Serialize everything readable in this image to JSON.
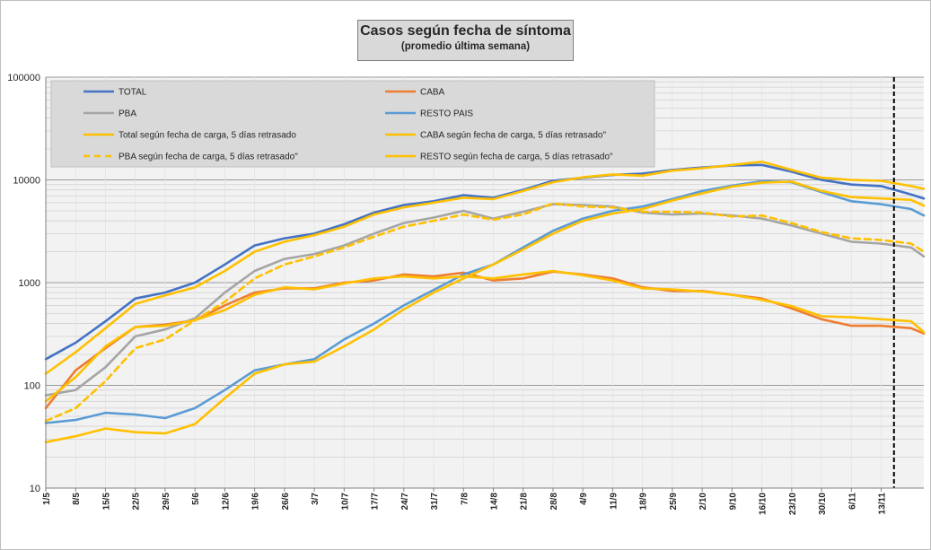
{
  "chart_data": {
    "type": "line",
    "title": "Casos según fecha de síntoma",
    "subtitle": "(promedio última semana)",
    "y_scale": "log",
    "ylim": [
      10,
      100000
    ],
    "y_ticks": [
      "10",
      "100",
      "1000",
      "10000",
      "100000"
    ],
    "x_ticks": [
      "1/5",
      "8/5",
      "15/5",
      "22/5",
      "29/5",
      "5/6",
      "12/6",
      "19/6",
      "26/6",
      "3/7",
      "10/7",
      "17/7",
      "24/7",
      "31/7",
      "7/8",
      "14/8",
      "21/8",
      "28/8",
      "4/9",
      "11/9",
      "18/9",
      "25/9",
      "2/10",
      "9/10",
      "16/10",
      "23/10",
      "30/10",
      "6/11",
      "13/11"
    ],
    "x_range_days": [
      0,
      206
    ],
    "vline_day": 199,
    "grid": true,
    "legend_position": "top-left inside plot",
    "x_unit": "days from 1/5",
    "series": [
      {
        "name": "TOTAL",
        "color": "#4472c4",
        "dash": false,
        "points": [
          [
            0,
            180
          ],
          [
            7,
            260
          ],
          [
            14,
            420
          ],
          [
            21,
            700
          ],
          [
            28,
            800
          ],
          [
            35,
            1000
          ],
          [
            42,
            1500
          ],
          [
            49,
            2300
          ],
          [
            56,
            2700
          ],
          [
            63,
            3000
          ],
          [
            70,
            3700
          ],
          [
            77,
            4800
          ],
          [
            84,
            5700
          ],
          [
            91,
            6200
          ],
          [
            98,
            7100
          ],
          [
            105,
            6700
          ],
          [
            112,
            8000
          ],
          [
            119,
            9800
          ],
          [
            126,
            10500
          ],
          [
            133,
            11200
          ],
          [
            140,
            11500
          ],
          [
            147,
            12500
          ],
          [
            154,
            13200
          ],
          [
            161,
            13800
          ],
          [
            168,
            14000
          ],
          [
            175,
            12000
          ],
          [
            182,
            10000
          ],
          [
            189,
            9000
          ],
          [
            196,
            8700
          ],
          [
            203,
            7200
          ],
          [
            206,
            6600
          ]
        ]
      },
      {
        "name": "CABA",
        "color": "#ed7d31",
        "dash": false,
        "points": [
          [
            0,
            60
          ],
          [
            7,
            140
          ],
          [
            14,
            230
          ],
          [
            21,
            370
          ],
          [
            28,
            390
          ],
          [
            35,
            430
          ],
          [
            42,
            600
          ],
          [
            49,
            800
          ],
          [
            56,
            880
          ],
          [
            63,
            880
          ],
          [
            70,
            1000
          ],
          [
            77,
            1050
          ],
          [
            84,
            1200
          ],
          [
            91,
            1150
          ],
          [
            98,
            1250
          ],
          [
            105,
            1050
          ],
          [
            112,
            1100
          ],
          [
            119,
            1280
          ],
          [
            126,
            1200
          ],
          [
            133,
            1100
          ],
          [
            140,
            900
          ],
          [
            147,
            830
          ],
          [
            154,
            830
          ],
          [
            161,
            760
          ],
          [
            168,
            700
          ],
          [
            175,
            560
          ],
          [
            182,
            440
          ],
          [
            189,
            380
          ],
          [
            196,
            380
          ],
          [
            203,
            360
          ],
          [
            206,
            320
          ]
        ]
      },
      {
        "name": "PBA",
        "color": "#a5a5a5",
        "dash": false,
        "points": [
          [
            0,
            80
          ],
          [
            7,
            90
          ],
          [
            14,
            150
          ],
          [
            21,
            300
          ],
          [
            28,
            350
          ],
          [
            35,
            450
          ],
          [
            42,
            800
          ],
          [
            49,
            1300
          ],
          [
            56,
            1700
          ],
          [
            63,
            1900
          ],
          [
            70,
            2300
          ],
          [
            77,
            3000
          ],
          [
            84,
            3800
          ],
          [
            91,
            4300
          ],
          [
            98,
            5000
          ],
          [
            105,
            4200
          ],
          [
            112,
            4900
          ],
          [
            119,
            5800
          ],
          [
            126,
            5700
          ],
          [
            133,
            5500
          ],
          [
            140,
            4800
          ],
          [
            147,
            4600
          ],
          [
            154,
            4700
          ],
          [
            161,
            4500
          ],
          [
            168,
            4200
          ],
          [
            175,
            3600
          ],
          [
            182,
            3000
          ],
          [
            189,
            2500
          ],
          [
            196,
            2400
          ],
          [
            203,
            2200
          ],
          [
            206,
            1800
          ]
        ]
      },
      {
        "name": "RESTO PAIS",
        "color": "#5b9bd5",
        "dash": false,
        "points": [
          [
            0,
            43
          ],
          [
            7,
            46
          ],
          [
            14,
            54
          ],
          [
            21,
            52
          ],
          [
            28,
            48
          ],
          [
            35,
            60
          ],
          [
            42,
            90
          ],
          [
            49,
            140
          ],
          [
            56,
            160
          ],
          [
            63,
            180
          ],
          [
            70,
            280
          ],
          [
            77,
            400
          ],
          [
            84,
            600
          ],
          [
            91,
            850
          ],
          [
            98,
            1200
          ],
          [
            105,
            1500
          ],
          [
            112,
            2200
          ],
          [
            119,
            3200
          ],
          [
            126,
            4200
          ],
          [
            133,
            5000
          ],
          [
            140,
            5500
          ],
          [
            147,
            6500
          ],
          [
            154,
            7800
          ],
          [
            161,
            8800
          ],
          [
            168,
            9700
          ],
          [
            175,
            9500
          ],
          [
            182,
            7600
          ],
          [
            189,
            6200
          ],
          [
            196,
            5800
          ],
          [
            203,
            5200
          ],
          [
            206,
            4500
          ]
        ]
      },
      {
        "name": "Total según fecha de carga, 5 días retrasado",
        "color": "#ffc000",
        "dash": false,
        "points": [
          [
            0,
            130
          ],
          [
            7,
            210
          ],
          [
            14,
            360
          ],
          [
            21,
            620
          ],
          [
            28,
            750
          ],
          [
            35,
            900
          ],
          [
            42,
            1300
          ],
          [
            49,
            2000
          ],
          [
            56,
            2500
          ],
          [
            63,
            2900
          ],
          [
            70,
            3500
          ],
          [
            77,
            4600
          ],
          [
            84,
            5400
          ],
          [
            91,
            6000
          ],
          [
            98,
            6700
          ],
          [
            105,
            6500
          ],
          [
            112,
            7800
          ],
          [
            119,
            9500
          ],
          [
            126,
            10600
          ],
          [
            133,
            11300
          ],
          [
            140,
            11000
          ],
          [
            147,
            12300
          ],
          [
            154,
            13000
          ],
          [
            161,
            14000
          ],
          [
            168,
            15000
          ],
          [
            175,
            12500
          ],
          [
            182,
            10500
          ],
          [
            189,
            10000
          ],
          [
            196,
            9800
          ],
          [
            203,
            8700
          ],
          [
            206,
            8200
          ]
        ]
      },
      {
        "name": "CABA según fecha de carga, 5 días retrasado\"",
        "color": "#ffc000",
        "dash": false,
        "points": [
          [
            0,
            28
          ],
          [
            7,
            32
          ],
          [
            14,
            38
          ],
          [
            21,
            35
          ],
          [
            28,
            34
          ],
          [
            35,
            42
          ],
          [
            42,
            75
          ],
          [
            49,
            130
          ],
          [
            56,
            160
          ],
          [
            63,
            170
          ],
          [
            70,
            240
          ],
          [
            77,
            350
          ],
          [
            84,
            550
          ],
          [
            91,
            800
          ],
          [
            98,
            1100
          ],
          [
            105,
            1500
          ],
          [
            112,
            2100
          ],
          [
            119,
            3000
          ],
          [
            126,
            4000
          ],
          [
            133,
            4700
          ],
          [
            140,
            5200
          ],
          [
            147,
            6300
          ],
          [
            154,
            7400
          ],
          [
            161,
            8600
          ],
          [
            168,
            9400
          ],
          [
            175,
            9600
          ],
          [
            182,
            7800
          ],
          [
            189,
            6800
          ],
          [
            196,
            6600
          ],
          [
            203,
            6400
          ],
          [
            206,
            5600
          ]
        ]
      },
      {
        "name": "PBA según fecha de carga, 5 días retrasado\"",
        "color": "#ffc000",
        "dash": true,
        "points": [
          [
            0,
            45
          ],
          [
            7,
            60
          ],
          [
            14,
            110
          ],
          [
            21,
            230
          ],
          [
            28,
            280
          ],
          [
            35,
            430
          ],
          [
            42,
            650
          ],
          [
            49,
            1100
          ],
          [
            56,
            1500
          ],
          [
            63,
            1800
          ],
          [
            70,
            2200
          ],
          [
            77,
            2800
          ],
          [
            84,
            3500
          ],
          [
            91,
            4000
          ],
          [
            98,
            4600
          ],
          [
            105,
            4100
          ],
          [
            112,
            4600
          ],
          [
            119,
            5900
          ],
          [
            126,
            5500
          ],
          [
            133,
            5400
          ],
          [
            140,
            4900
          ],
          [
            147,
            4900
          ],
          [
            154,
            4800
          ],
          [
            161,
            4400
          ],
          [
            168,
            4500
          ],
          [
            175,
            3800
          ],
          [
            182,
            3100
          ],
          [
            189,
            2700
          ],
          [
            196,
            2600
          ],
          [
            203,
            2400
          ],
          [
            206,
            2000
          ]
        ]
      },
      {
        "name": "RESTO según fecha de carga, 5 días retrasado\"",
        "color": "#ffc000",
        "dash": false,
        "points": [
          [
            0,
            70
          ],
          [
            7,
            120
          ],
          [
            14,
            240
          ],
          [
            21,
            370
          ],
          [
            28,
            380
          ],
          [
            35,
            430
          ],
          [
            42,
            540
          ],
          [
            49,
            760
          ],
          [
            56,
            900
          ],
          [
            63,
            860
          ],
          [
            70,
            980
          ],
          [
            77,
            1100
          ],
          [
            84,
            1150
          ],
          [
            91,
            1100
          ],
          [
            98,
            1150
          ],
          [
            105,
            1100
          ],
          [
            112,
            1200
          ],
          [
            119,
            1300
          ],
          [
            126,
            1180
          ],
          [
            133,
            1050
          ],
          [
            140,
            880
          ],
          [
            147,
            860
          ],
          [
            154,
            820
          ],
          [
            161,
            760
          ],
          [
            168,
            680
          ],
          [
            175,
            590
          ],
          [
            182,
            470
          ],
          [
            189,
            460
          ],
          [
            196,
            440
          ],
          [
            203,
            420
          ],
          [
            206,
            330
          ]
        ]
      }
    ]
  }
}
